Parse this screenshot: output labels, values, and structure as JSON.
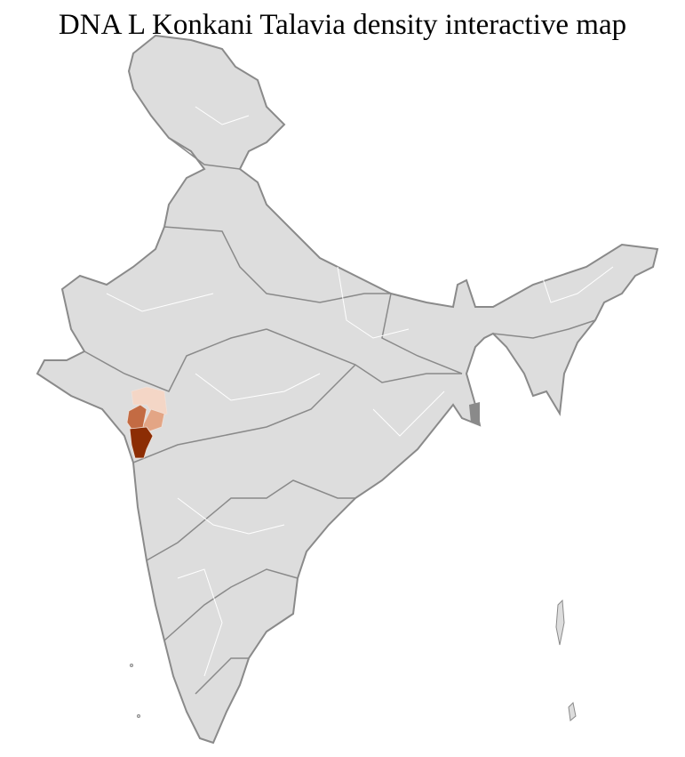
{
  "title": "DNA L Konkani Talavia density interactive map",
  "colors": {
    "land": "#dddddd",
    "state_border": "#8a8a8a",
    "district_border": "#ffffff",
    "density_low": "#f4d6c6",
    "density_mid_low": "#e3a585",
    "density_mid": "#c36b43",
    "density_high": "#8c2d04"
  }
}
